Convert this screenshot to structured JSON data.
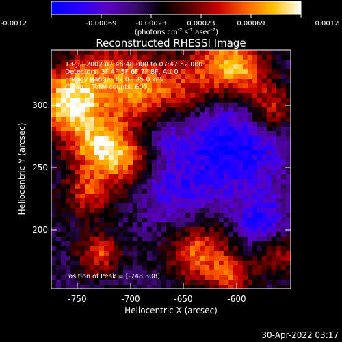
{
  "colorbar": {
    "ticks": [
      "-0.0012",
      "-0.00069",
      "-0.00023",
      "0.00023",
      "0.00069",
      "0.0012"
    ],
    "unit_parts": {
      "open": "(photons cm",
      "exp1": "-2",
      "mid1": " s",
      "exp2": "-1",
      "mid2": " asec",
      "exp3": "-2",
      "close": ")"
    }
  },
  "title": "Reconstructed RHESSI Image",
  "annotations": {
    "time_range": "13-Jul-2002 07:46:48.000 to 07:47:52.000",
    "detectors": "Detectors: 3F 4F 5F 6F 7F 8F, Att 0",
    "energy": "Energy Range: 12.0 - 25.0 keV",
    "method": "Clean    Total counts: 600.",
    "peak": "Position of Peak = [-748,308]"
  },
  "axes": {
    "x_label": "Heliocentric X (arcsec)",
    "y_label": "Heliocentric Y (arcsec)",
    "x_ticks": [
      "-750",
      "-700",
      "-650",
      "-600"
    ],
    "y_ticks": [
      "300",
      "250",
      "200"
    ]
  },
  "footer_timestamp": "30-Apr-2022 03:17",
  "colors": {
    "colormap": [
      "#0000ff",
      "#2a00ff",
      "#5a00c8",
      "#3c0a70",
      "#000000",
      "#5a0000",
      "#c80000",
      "#ff6000",
      "#ffc000",
      "#ffffff"
    ],
    "background": "#000000",
    "text": "#ffffff"
  }
}
